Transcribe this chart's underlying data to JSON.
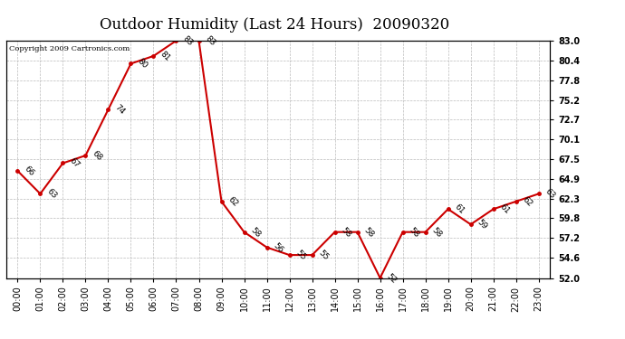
{
  "title": "Outdoor Humidity (Last 24 Hours)  20090320",
  "copyright": "Copyright 2009 Cartronics.com",
  "x_labels": [
    "00:00",
    "01:00",
    "02:00",
    "03:00",
    "04:00",
    "05:00",
    "06:00",
    "07:00",
    "08:00",
    "09:00",
    "10:00",
    "11:00",
    "12:00",
    "13:00",
    "14:00",
    "15:00",
    "16:00",
    "17:00",
    "18:00",
    "19:00",
    "20:00",
    "21:00",
    "22:00",
    "23:00"
  ],
  "y_values": [
    66,
    63,
    67,
    68,
    74,
    80,
    81,
    83,
    83,
    62,
    58,
    56,
    55,
    55,
    58,
    58,
    52,
    58,
    58,
    61,
    59,
    61,
    62,
    63
  ],
  "line_color": "#cc0000",
  "marker_color": "#cc0000",
  "bg_color": "#ffffff",
  "grid_color": "#bbbbbb",
  "ylim_min": 52.0,
  "ylim_max": 83.0,
  "y_ticks": [
    52.0,
    54.6,
    57.2,
    59.8,
    62.3,
    64.9,
    67.5,
    70.1,
    72.7,
    75.2,
    77.8,
    80.4,
    83.0
  ],
  "title_fontsize": 12,
  "label_fontsize": 7,
  "annotation_fontsize": 6.5,
  "copyright_fontsize": 6
}
